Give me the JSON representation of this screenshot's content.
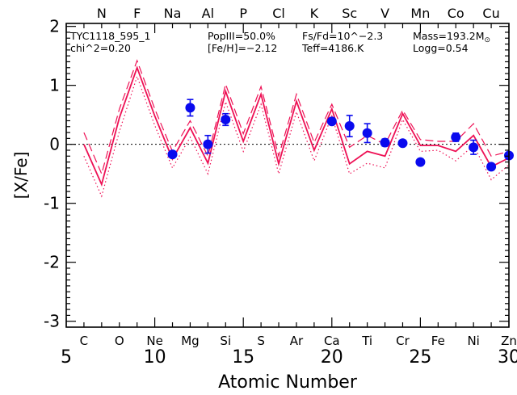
{
  "chart_data": {
    "type": "line",
    "title": "",
    "xlabel": "Atomic Number",
    "ylabel": "[X/Fe]",
    "xlim": [
      5,
      30
    ],
    "ylim": [
      -3.1,
      2.05
    ],
    "grid": false,
    "x_ticks": [
      5,
      10,
      15,
      20,
      25,
      30
    ],
    "y_ticks": [
      -3,
      -2,
      -1,
      0,
      1,
      2
    ],
    "reference_line_y": 0,
    "colors": {
      "model": "#ee1155",
      "observed": "#0a0aee",
      "axes": "#000000"
    },
    "top_elements": [
      {
        "z": 7,
        "symbol": "N"
      },
      {
        "z": 9,
        "symbol": "F"
      },
      {
        "z": 11,
        "symbol": "Na"
      },
      {
        "z": 13,
        "symbol": "Al"
      },
      {
        "z": 15,
        "symbol": "P"
      },
      {
        "z": 17,
        "symbol": "Cl"
      },
      {
        "z": 19,
        "symbol": "K"
      },
      {
        "z": 21,
        "symbol": "Sc"
      },
      {
        "z": 23,
        "symbol": "V"
      },
      {
        "z": 25,
        "symbol": "Mn"
      },
      {
        "z": 27,
        "symbol": "Co"
      },
      {
        "z": 29,
        "symbol": "Cu"
      }
    ],
    "bottom_elements": [
      {
        "z": 6,
        "symbol": "C"
      },
      {
        "z": 8,
        "symbol": "O"
      },
      {
        "z": 10,
        "symbol": "Ne"
      },
      {
        "z": 12,
        "symbol": "Mg"
      },
      {
        "z": 14,
        "symbol": "Si"
      },
      {
        "z": 16,
        "symbol": "S"
      },
      {
        "z": 18,
        "symbol": "Ar"
      },
      {
        "z": 20,
        "symbol": "Ca"
      },
      {
        "z": 22,
        "symbol": "Ti"
      },
      {
        "z": 24,
        "symbol": "Cr"
      },
      {
        "z": 26,
        "symbol": "Fe"
      },
      {
        "z": 28,
        "symbol": "Ni"
      },
      {
        "z": 30,
        "symbol": "Zn"
      }
    ],
    "annotations": {
      "star": "TYC1118_595_1",
      "chi2": "chi^2=0.20",
      "popiii": "PopIII=50.0%",
      "feh": "[Fe/H]=−2.12",
      "fsfd": "Fs/Fd=10^−2.3",
      "teff": "Teff=4186.K",
      "mass": "Mass=193.2M",
      "mass_unit": "⊙",
      "logg": "Logg=0.54"
    },
    "series": [
      {
        "style": "solid",
        "x": [
          6,
          7,
          8,
          9,
          10,
          11,
          12,
          13,
          14,
          15,
          16,
          17,
          18,
          19,
          20,
          21,
          22,
          23,
          24,
          25,
          26,
          27,
          28,
          29,
          30
        ],
        "y": [
          0.0,
          -0.68,
          0.45,
          1.3,
          0.48,
          -0.25,
          0.28,
          -0.32,
          0.9,
          0.05,
          0.85,
          -0.33,
          0.73,
          -0.1,
          0.6,
          -0.33,
          -0.12,
          -0.2,
          0.52,
          -0.02,
          -0.02,
          -0.12,
          0.15,
          -0.38,
          -0.23
        ]
      },
      {
        "style": "dashed",
        "x": [
          6,
          7,
          8,
          9,
          10,
          11,
          12,
          13,
          14,
          15,
          16,
          17,
          18,
          19,
          20,
          21,
          22,
          23,
          24,
          25,
          26,
          27,
          28,
          29,
          30
        ],
        "y": [
          0.2,
          -0.5,
          0.6,
          1.42,
          0.6,
          -0.12,
          0.4,
          -0.2,
          1.02,
          0.18,
          0.98,
          -0.2,
          0.85,
          0.03,
          0.68,
          -0.05,
          0.15,
          0.0,
          0.58,
          0.08,
          0.05,
          0.05,
          0.35,
          -0.2,
          -0.12
        ]
      },
      {
        "style": "dotted",
        "x": [
          6,
          7,
          8,
          9,
          10,
          11,
          12,
          13,
          14,
          15,
          16,
          17,
          18,
          19,
          20,
          21,
          22,
          23,
          24,
          25,
          26,
          27,
          28,
          29,
          30
        ],
        "y": [
          -0.2,
          -0.88,
          0.22,
          1.15,
          0.32,
          -0.4,
          0.12,
          -0.5,
          0.72,
          -0.12,
          0.68,
          -0.5,
          0.55,
          -0.28,
          0.48,
          -0.5,
          -0.32,
          -0.4,
          0.42,
          -0.12,
          -0.1,
          -0.28,
          -0.02,
          -0.6,
          -0.35
        ]
      },
      {
        "style": "points",
        "points": [
          {
            "x": 11,
            "y": -0.17,
            "err": 0.0
          },
          {
            "x": 12,
            "y": 0.62,
            "err": 0.14
          },
          {
            "x": 13,
            "y": 0.0,
            "err": 0.15
          },
          {
            "x": 14,
            "y": 0.42,
            "err": 0.1
          },
          {
            "x": 20,
            "y": 0.39,
            "err": 0.05
          },
          {
            "x": 21,
            "y": 0.31,
            "err": 0.18
          },
          {
            "x": 22,
            "y": 0.19,
            "err": 0.16
          },
          {
            "x": 23,
            "y": 0.03,
            "err": 0.06
          },
          {
            "x": 24,
            "y": 0.02,
            "err": 0.04
          },
          {
            "x": 25,
            "y": -0.3,
            "err": 0.03
          },
          {
            "x": 27,
            "y": 0.12,
            "err": 0.07
          },
          {
            "x": 28,
            "y": -0.05,
            "err": 0.12
          },
          {
            "x": 29,
            "y": -0.38,
            "err": 0.04
          },
          {
            "x": 30,
            "y": -0.19,
            "err": 0.03
          }
        ]
      }
    ]
  }
}
